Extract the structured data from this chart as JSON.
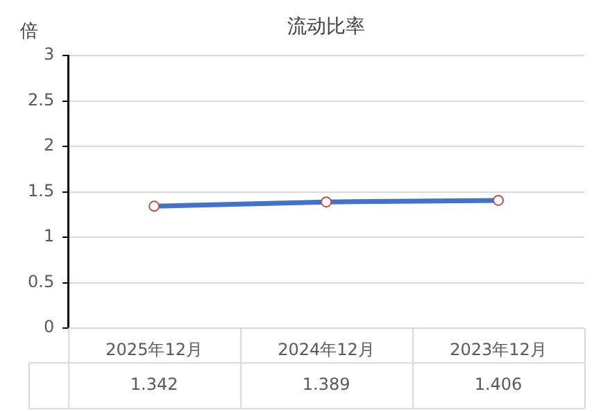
{
  "chart_data": {
    "type": "line",
    "title": "流动比率",
    "ylabel": "倍",
    "categories": [
      "2025年12月",
      "2024年12月",
      "2023年12月"
    ],
    "series": [
      {
        "color": "#4472c4",
        "values": [
          1.342,
          1.389,
          1.406
        ]
      }
    ],
    "ylim": [
      0,
      3
    ],
    "yticks": [
      0,
      0.5,
      1,
      1.5,
      2,
      2.5,
      3
    ],
    "grid": "y",
    "marker": "circle",
    "line_style": "solid",
    "data_labels": true,
    "legend": false
  }
}
